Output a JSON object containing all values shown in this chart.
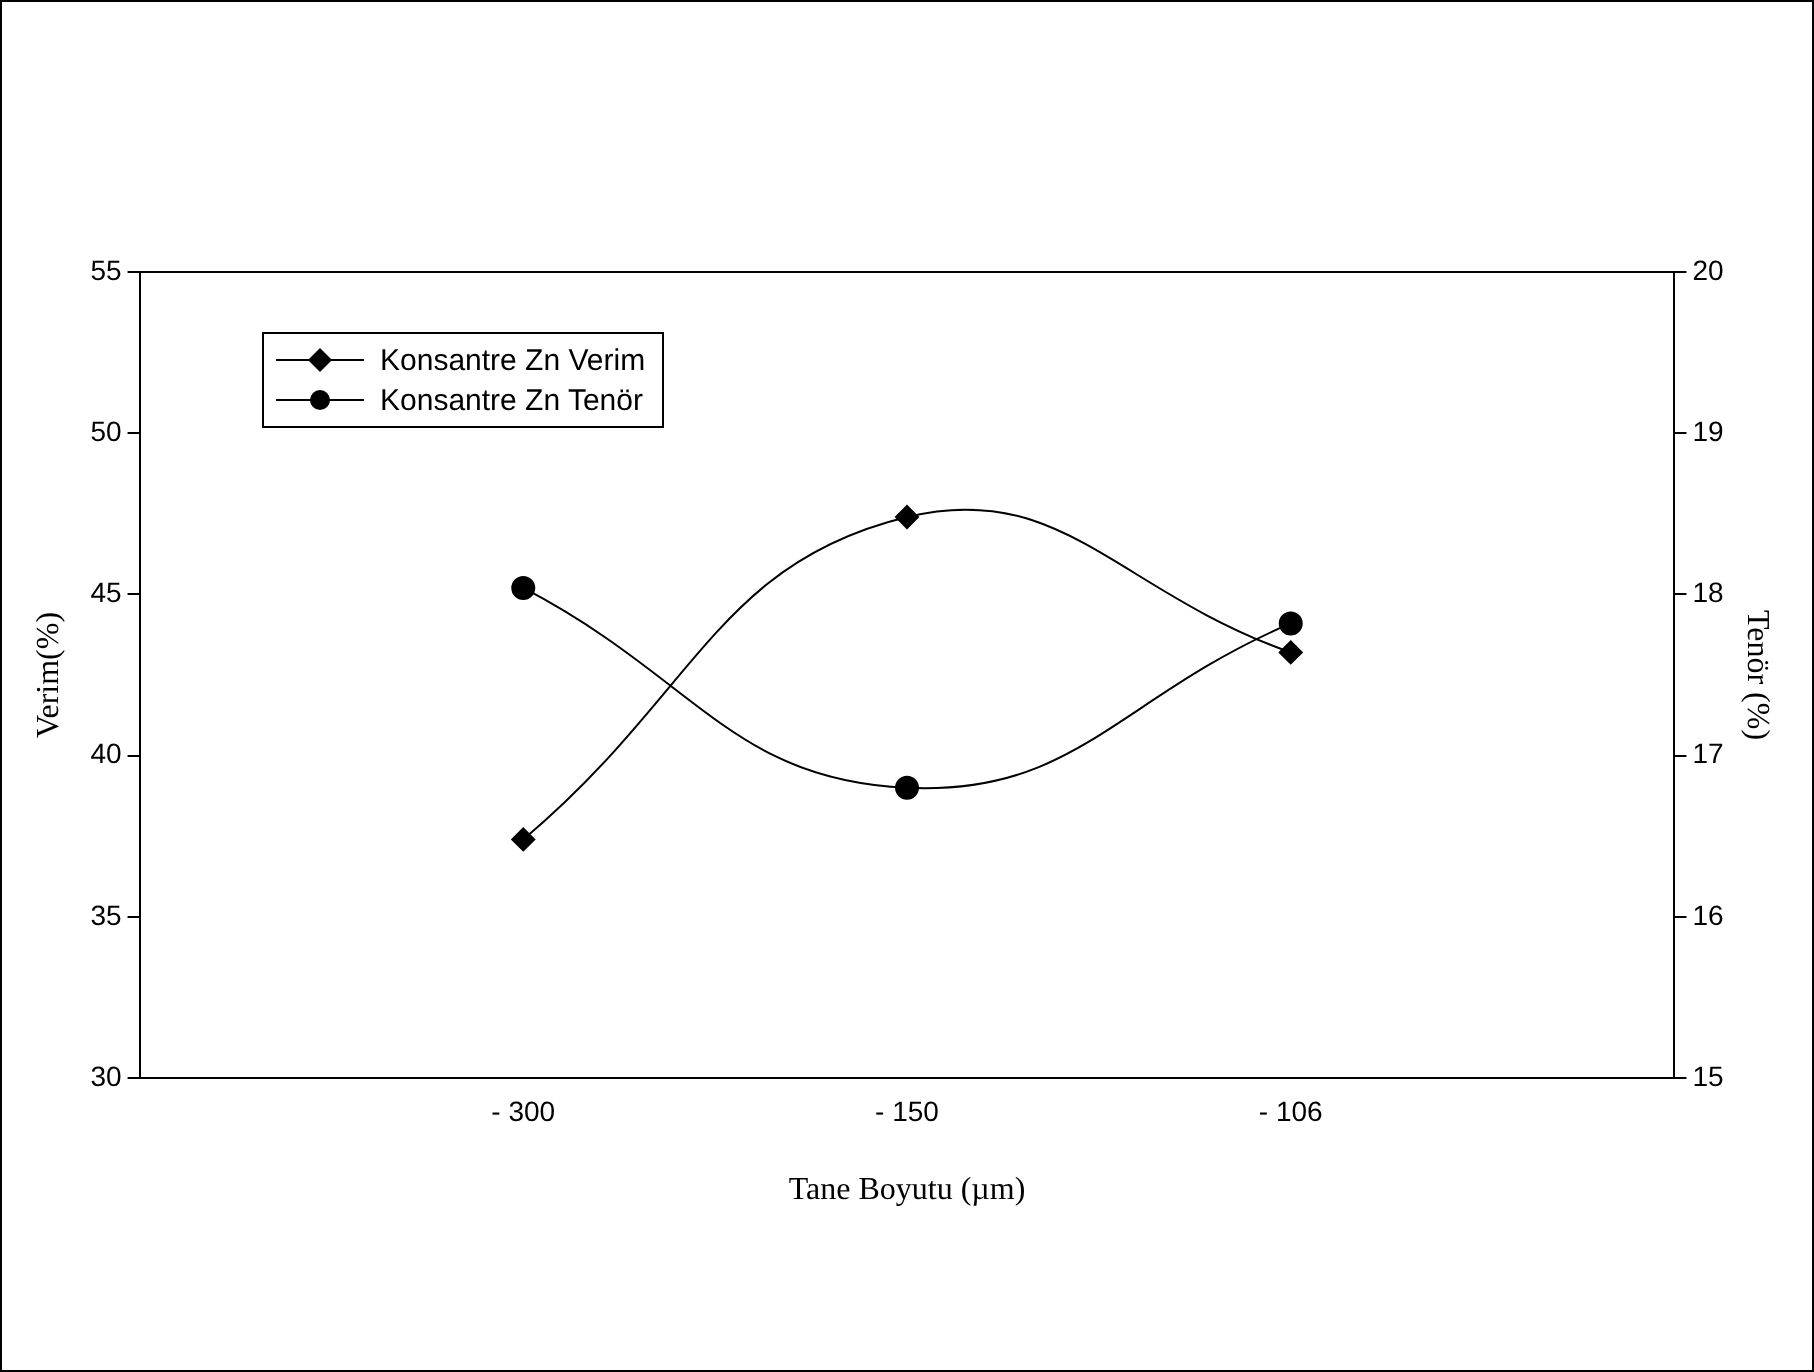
{
  "chart_data": {
    "type": "line",
    "xlabel": "Tane Boyutu (µm)",
    "ylabel": "Verim(%)",
    "y2label": "Tenör (%)",
    "categories": [
      "- 300",
      "- 150",
      "- 106"
    ],
    "series": [
      {
        "name": "Konsantre Zn Verim",
        "color": "#000000",
        "marker": "diamond",
        "values": [
          37.4,
          47.4,
          43.2
        ]
      },
      {
        "name": "Konsantre Zn Tenör",
        "color": "#000000",
        "marker": "circle",
        "axis": "y2",
        "values": [
          18.04,
          16.8,
          17.82
        ]
      }
    ],
    "ylim": [
      30,
      55
    ],
    "yticks": [
      30,
      35,
      40,
      45,
      50,
      55
    ],
    "y2lim": [
      15,
      20
    ],
    "y2ticks": [
      15,
      16,
      17,
      18,
      19,
      20
    ],
    "legend": "top left",
    "grid": false
  }
}
